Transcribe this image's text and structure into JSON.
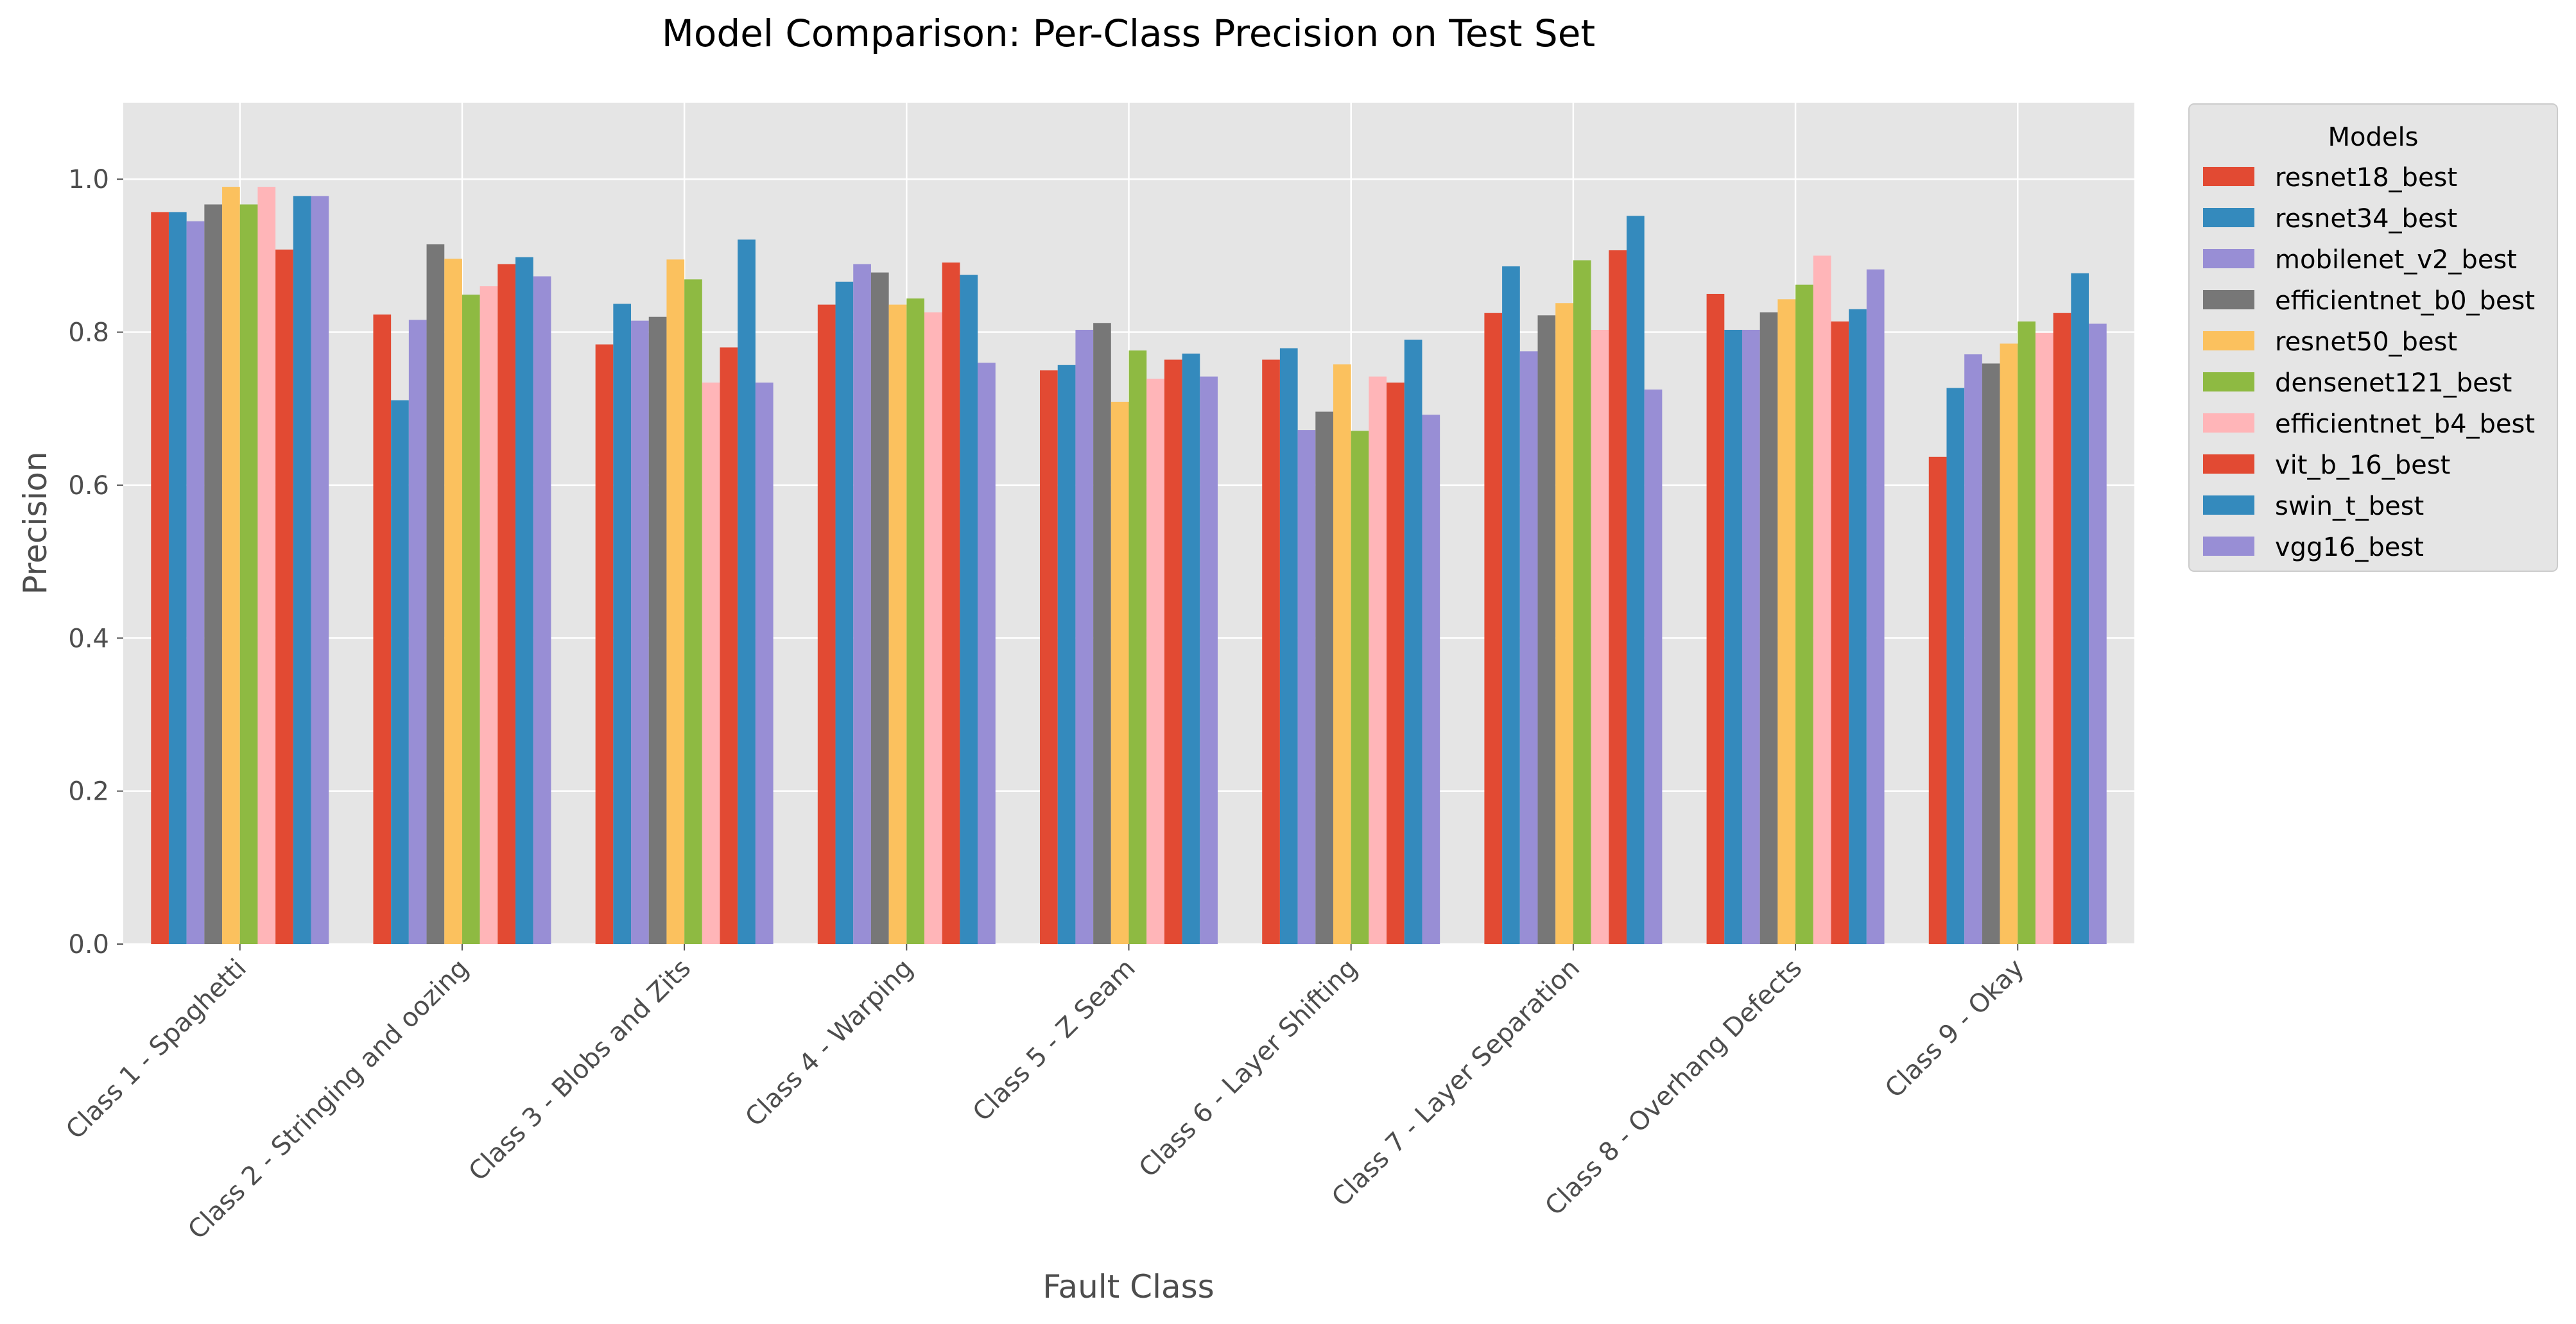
{
  "chart_data": {
    "type": "bar",
    "title": "Model Comparison: Per-Class Precision on Test Set",
    "xlabel": "Fault Class",
    "ylabel": "Precision",
    "ylim": [
      0,
      1.1
    ],
    "yticks": [
      "0.0",
      "0.2",
      "0.4",
      "0.6",
      "0.8",
      "1.0"
    ],
    "grid": true,
    "legend": {
      "title": "Models",
      "placement": "outside-top-right"
    },
    "categories": [
      "Class 1 - Spaghetti",
      "Class 2 - Stringing and oozing",
      "Class 3 - Blobs and Zits",
      "Class 4 - Warping",
      "Class 5 - Z Seam",
      "Class 6 - Layer Shifting",
      "Class 7 - Layer Separation",
      "Class 8 - Overhang Defects",
      "Class 9 - Okay"
    ],
    "series": [
      {
        "name": "resnet18_best",
        "color": "#E24A33",
        "values": [
          0.957,
          0.823,
          0.784,
          0.836,
          0.75,
          0.764,
          0.825,
          0.85,
          0.637
        ]
      },
      {
        "name": "resnet34_best",
        "color": "#348ABD",
        "values": [
          0.957,
          0.711,
          0.837,
          0.866,
          0.757,
          0.779,
          0.886,
          0.803,
          0.727
        ]
      },
      {
        "name": "mobilenet_v2_best",
        "color": "#988ED5",
        "values": [
          0.945,
          0.816,
          0.815,
          0.889,
          0.803,
          0.672,
          0.775,
          0.803,
          0.771
        ]
      },
      {
        "name": "efficientnet_b0_best",
        "color": "#777777",
        "values": [
          0.967,
          0.915,
          0.82,
          0.878,
          0.812,
          0.696,
          0.822,
          0.826,
          0.759
        ]
      },
      {
        "name": "resnet50_best",
        "color": "#FBC15E",
        "values": [
          0.99,
          0.896,
          0.895,
          0.836,
          0.709,
          0.758,
          0.838,
          0.843,
          0.785
        ]
      },
      {
        "name": "densenet121_best",
        "color": "#8EBA42",
        "values": [
          0.967,
          0.849,
          0.869,
          0.844,
          0.776,
          0.671,
          0.894,
          0.862,
          0.814
        ]
      },
      {
        "name": "efficientnet_b4_best",
        "color": "#FFB5B8",
        "values": [
          0.99,
          0.86,
          0.734,
          0.826,
          0.739,
          0.742,
          0.803,
          0.9,
          0.799
        ]
      },
      {
        "name": "vit_b_16_best",
        "color": "#E24A33",
        "values": [
          0.908,
          0.889,
          0.78,
          0.891,
          0.764,
          0.734,
          0.907,
          0.814,
          0.825
        ]
      },
      {
        "name": "swin_t_best",
        "color": "#348ABD",
        "values": [
          0.978,
          0.898,
          0.921,
          0.875,
          0.772,
          0.79,
          0.952,
          0.83,
          0.877
        ]
      },
      {
        "name": "vgg16_best",
        "color": "#988ED5",
        "values": [
          0.978,
          0.873,
          0.734,
          0.76,
          0.742,
          0.692,
          0.725,
          0.882,
          0.811
        ]
      }
    ]
  }
}
